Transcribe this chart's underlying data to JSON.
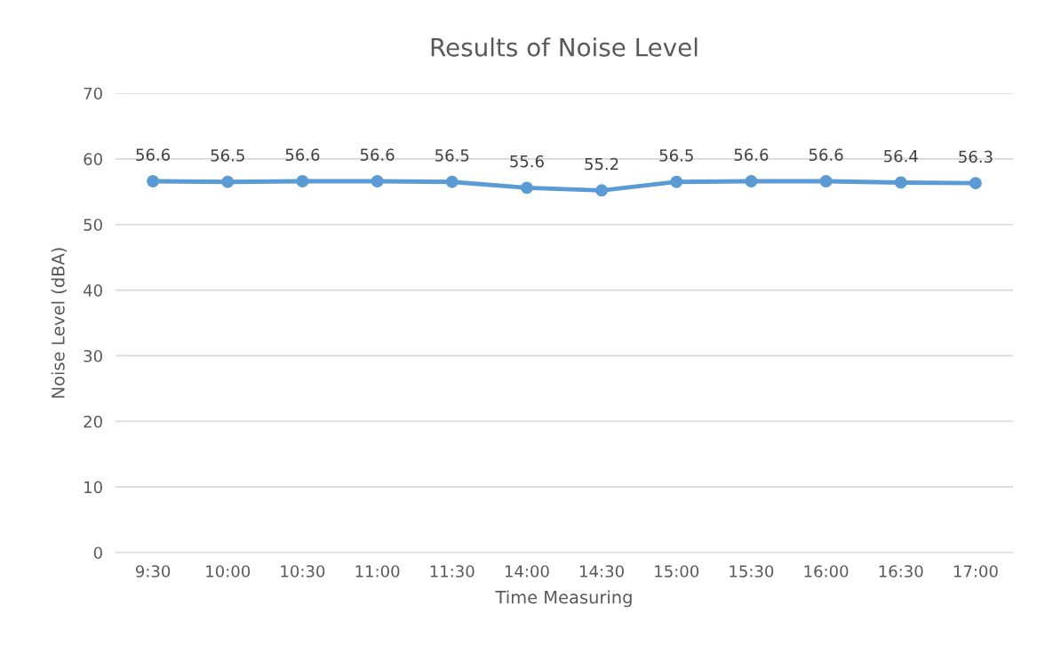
{
  "chart_data": {
    "type": "line",
    "title": "Results of Noise Level",
    "xlabel": "Time Measuring",
    "ylabel": "Noise Level (dBA)",
    "categories": [
      "9:30",
      "10:00",
      "10:30",
      "11:00",
      "11:30",
      "14:00",
      "14:30",
      "15:00",
      "15:30",
      "16:00",
      "16:30",
      "17:00"
    ],
    "series": [
      {
        "color": "#5b9bd5",
        "values": [
          56.6,
          56.5,
          56.6,
          56.6,
          56.5,
          55.6,
          55.2,
          56.5,
          56.6,
          56.6,
          56.4,
          56.3
        ]
      }
    ],
    "ylim": [
      0,
      70
    ],
    "yticks": [
      0,
      10,
      20,
      30,
      40,
      50,
      60,
      70
    ],
    "grid": "y",
    "marker": "circle",
    "line_style": "solid",
    "data_labels": true,
    "legend": false
  }
}
